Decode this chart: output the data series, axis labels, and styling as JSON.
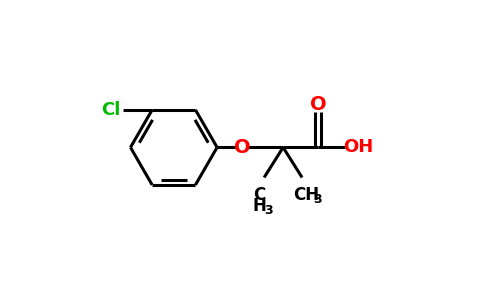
{
  "background_color": "#ffffff",
  "bond_color": "#000000",
  "cl_color": "#00bb00",
  "o_color": "#ff0000",
  "line_width": 2.2,
  "figsize": [
    4.84,
    3.0
  ],
  "dpi": 100,
  "xlim": [
    0,
    8.5
  ],
  "ylim": [
    0,
    5.6
  ]
}
